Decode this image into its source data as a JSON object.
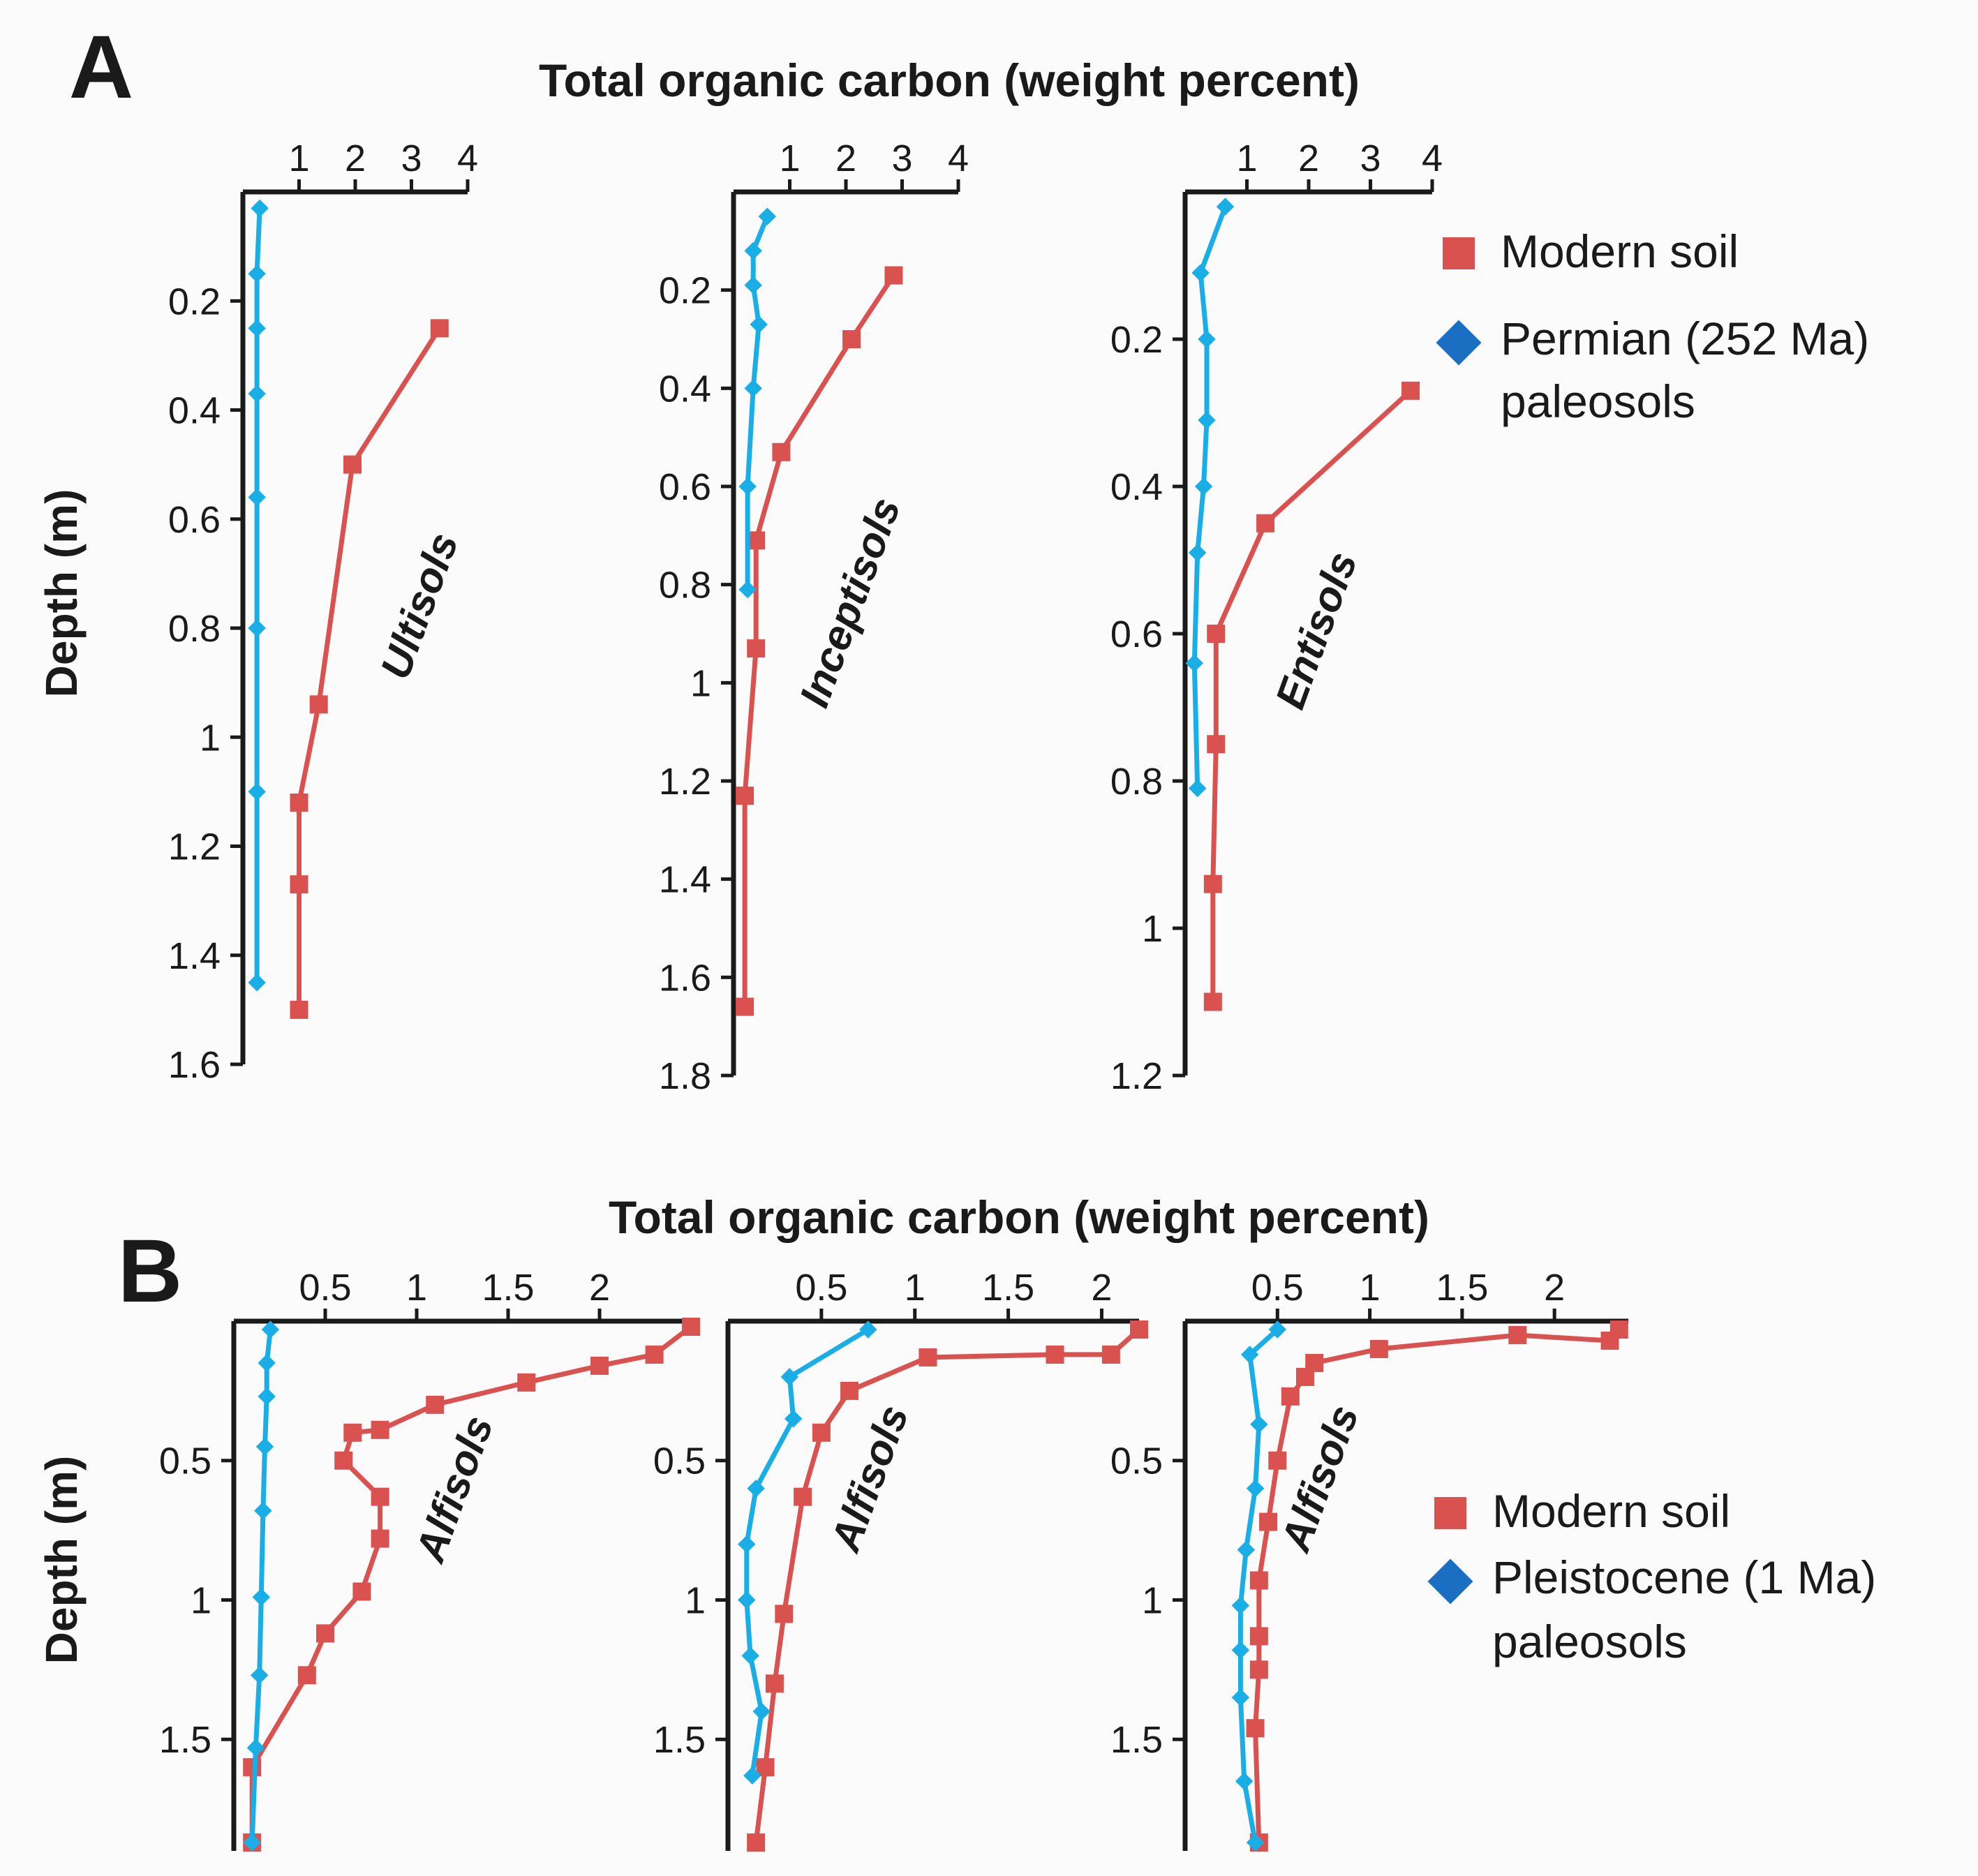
{
  "colors": {
    "modern": "#d9524f",
    "paleo_line": "#1aaee6",
    "paleo_marker": "#1a6fc2",
    "axis": "#1a1a1a"
  },
  "panels": {
    "A": {
      "letter": "A",
      "title": "Total organic carbon (weight percent)",
      "ylabel": "Depth (m)",
      "legend": {
        "modern": "Modern soil",
        "paleo_1": "Permian (252 Ma)",
        "paleo_2": "paleosols"
      }
    },
    "B": {
      "letter": "B",
      "title": "Total organic carbon (weight percent)",
      "ylabel": "Depth (m)",
      "legend": {
        "modern": "Modern soil",
        "paleo_1": "Pleistocene (1 Ma)",
        "paleo_2": "paleosols"
      }
    }
  },
  "chart_data": [
    {
      "type": "line",
      "panel": "A",
      "soil_label": "Ultisols",
      "xlabel": "Total organic carbon (weight percent)",
      "ylabel": "Depth (m)",
      "xlim": [
        0,
        4
      ],
      "ylim": [
        0,
        1.6
      ],
      "xticks": [
        1,
        2,
        3,
        4
      ],
      "xtick_labels": [
        "1",
        "2",
        "3",
        "4"
      ],
      "yticks": [
        0.2,
        0.4,
        0.6,
        0.8,
        1,
        1.2,
        1.4,
        1.6
      ],
      "ytick_labels": [
        "0.2",
        "0.4",
        "0.6",
        "0.8",
        "1",
        "1.2",
        "1.4",
        "1.6"
      ],
      "series": [
        {
          "name": "Modern soil",
          "x": [
            3.5,
            1.95,
            1.35,
            1.0,
            1.0,
            1.0
          ],
          "y": [
            0.25,
            0.5,
            0.94,
            1.12,
            1.27,
            1.5
          ]
        },
        {
          "name": "Permian (252 Ma) paleosols",
          "x": [
            0.3,
            0.25,
            0.25,
            0.25,
            0.25,
            0.25,
            0.25,
            0.25
          ],
          "y": [
            0.03,
            0.15,
            0.25,
            0.37,
            0.56,
            0.8,
            1.1,
            1.45
          ]
        }
      ]
    },
    {
      "type": "line",
      "panel": "A",
      "soil_label": "Inceptisols",
      "xlabel": "Total organic carbon (weight percent)",
      "ylabel": "Depth (m)",
      "xlim": [
        0,
        4
      ],
      "ylim": [
        0,
        1.8
      ],
      "xticks": [
        1,
        2,
        3,
        4
      ],
      "xtick_labels": [
        "1",
        "2",
        "3",
        "4"
      ],
      "yticks": [
        0.2,
        0.4,
        0.6,
        0.8,
        1,
        1.2,
        1.4,
        1.6,
        1.8
      ],
      "ytick_labels": [
        "0.2",
        "0.4",
        "0.6",
        "0.8",
        "1",
        "1.2",
        "1.4",
        "1.6",
        "1.8"
      ],
      "series": [
        {
          "name": "Modern soil",
          "x": [
            2.85,
            2.1,
            0.85,
            0.4,
            0.4,
            0.2,
            0.2
          ],
          "y": [
            0.17,
            0.3,
            0.53,
            0.71,
            0.93,
            1.23,
            1.66
          ]
        },
        {
          "name": "Permian (252 Ma) paleosols",
          "x": [
            0.6,
            0.35,
            0.35,
            0.45,
            0.35,
            0.25,
            0.25
          ],
          "y": [
            0.05,
            0.12,
            0.19,
            0.27,
            0.4,
            0.6,
            0.81
          ]
        }
      ]
    },
    {
      "type": "line",
      "panel": "A",
      "soil_label": "Entisols",
      "xlabel": "Total organic carbon (weight percent)",
      "ylabel": "Depth (m)",
      "xlim": [
        0,
        4
      ],
      "ylim": [
        0,
        1.2
      ],
      "xticks": [
        1,
        2,
        3,
        4
      ],
      "xtick_labels": [
        "1",
        "2",
        "3",
        "4"
      ],
      "yticks": [
        0.2,
        0.4,
        0.6,
        0.8,
        1,
        1.2
      ],
      "ytick_labels": [
        "0.2",
        "0.4",
        "0.6",
        "0.8",
        "1",
        "1.2"
      ],
      "series": [
        {
          "name": "Modern soil",
          "x": [
            3.65,
            1.3,
            0.5,
            0.5,
            0.45,
            0.45
          ],
          "y": [
            0.27,
            0.45,
            0.6,
            0.75,
            0.94,
            1.1
          ]
        },
        {
          "name": "Permian (252 Ma) paleosols",
          "x": [
            0.65,
            0.25,
            0.35,
            0.35,
            0.3,
            0.2,
            0.15,
            0.2
          ],
          "y": [
            0.02,
            0.11,
            0.2,
            0.31,
            0.4,
            0.49,
            0.64,
            0.81
          ]
        }
      ]
    },
    {
      "type": "line",
      "panel": "B",
      "soil_label": "Alfisols",
      "xlabel": "Total organic carbon (weight percent)",
      "ylabel": "Depth (m)",
      "xlim": [
        0,
        2.5
      ],
      "ylim": [
        0,
        1.9
      ],
      "xticks": [
        0.5,
        1,
        1.5,
        2
      ],
      "xtick_labels": [
        "0.5",
        "1",
        "1.5",
        "2"
      ],
      "yticks": [
        0.5,
        1,
        1.5
      ],
      "ytick_labels": [
        "0.5",
        "1",
        "1.5"
      ],
      "series": [
        {
          "name": "Modern soil",
          "x": [
            2.5,
            2.3,
            2.0,
            1.6,
            1.1,
            0.8,
            0.65,
            0.6,
            0.8,
            0.8,
            0.7,
            0.5,
            0.4,
            0.1,
            0.1
          ],
          "y": [
            0.02,
            0.12,
            0.16,
            0.22,
            0.3,
            0.39,
            0.4,
            0.5,
            0.63,
            0.78,
            0.97,
            1.12,
            1.27,
            1.6,
            1.87
          ]
        },
        {
          "name": "Pleistocene (1 Ma) paleosols",
          "x": [
            0.2,
            0.18,
            0.18,
            0.17,
            0.16,
            0.15,
            0.14,
            0.12,
            0.1
          ],
          "y": [
            0.03,
            0.15,
            0.27,
            0.45,
            0.68,
            0.99,
            1.27,
            1.53,
            1.87
          ]
        }
      ]
    },
    {
      "type": "line",
      "panel": "B",
      "soil_label": "Alfisols",
      "xlabel": "Total organic carbon (weight percent)",
      "ylabel": "Depth (m)",
      "xlim": [
        0,
        2.2
      ],
      "ylim": [
        0,
        1.9
      ],
      "xticks": [
        0.5,
        1,
        1.5,
        2
      ],
      "xtick_labels": [
        "0.5",
        "1",
        "1.5",
        "2"
      ],
      "yticks": [
        0.5,
        1,
        1.5
      ],
      "ytick_labels": [
        "0.5",
        "1",
        "1.5"
      ],
      "series": [
        {
          "name": "Modern soil",
          "x": [
            2.2,
            2.05,
            1.75,
            1.07,
            0.65,
            0.5,
            0.4,
            0.3,
            0.25,
            0.2,
            0.15
          ],
          "y": [
            0.03,
            0.12,
            0.12,
            0.13,
            0.25,
            0.4,
            0.63,
            1.05,
            1.3,
            1.6,
            1.87
          ]
        },
        {
          "name": "Pleistocene (1 Ma) paleosols",
          "x": [
            0.75,
            0.33,
            0.35,
            0.15,
            0.1,
            0.1,
            0.12,
            0.18,
            0.13
          ],
          "y": [
            0.03,
            0.2,
            0.35,
            0.6,
            0.8,
            1.0,
            1.2,
            1.4,
            1.63
          ]
        }
      ]
    },
    {
      "type": "line",
      "panel": "B",
      "soil_label": "Alfisols",
      "xlabel": "Total organic carbon (weight percent)",
      "ylabel": "Depth (m)",
      "xlim": [
        0,
        2.4
      ],
      "ylim": [
        0,
        1.9
      ],
      "xticks": [
        0.5,
        1,
        1.5,
        2
      ],
      "xtick_labels": [
        "0.5",
        "1",
        "1.5",
        "2"
      ],
      "yticks": [
        0.5,
        1,
        1.5
      ],
      "ytick_labels": [
        "0.5",
        "1",
        "1.5"
      ],
      "series": [
        {
          "name": "Modern soil",
          "x": [
            2.35,
            2.3,
            1.8,
            1.05,
            0.7,
            0.65,
            0.57,
            0.5,
            0.45,
            0.4,
            0.4,
            0.4,
            0.38,
            0.4
          ],
          "y": [
            0.03,
            0.07,
            0.05,
            0.1,
            0.15,
            0.2,
            0.27,
            0.5,
            0.72,
            0.93,
            1.13,
            1.25,
            1.46,
            1.87
          ]
        },
        {
          "name": "Pleistocene (1 Ma) paleosols",
          "x": [
            0.5,
            0.35,
            0.4,
            0.38,
            0.33,
            0.3,
            0.3,
            0.3,
            0.32,
            0.38
          ],
          "y": [
            0.03,
            0.12,
            0.37,
            0.6,
            0.82,
            1.02,
            1.18,
            1.35,
            1.65,
            1.87
          ]
        }
      ]
    }
  ]
}
